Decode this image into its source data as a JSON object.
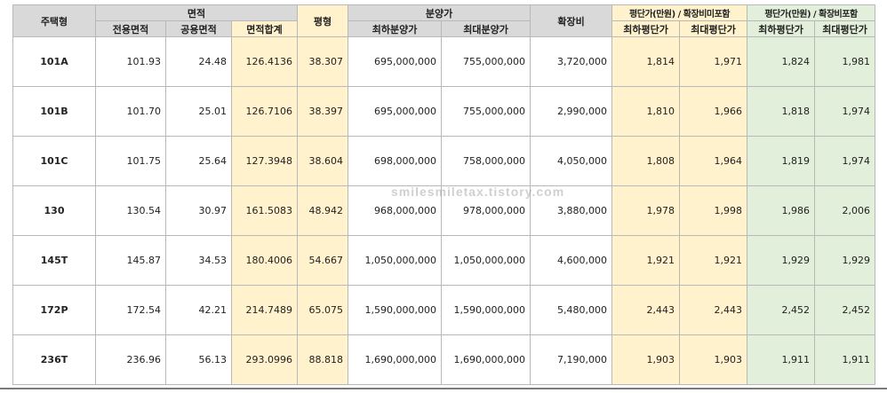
{
  "headers": {
    "type": "주택형",
    "area_group": "면적",
    "exclusive_area": "전용면적",
    "common_area": "공용면적",
    "total_area": "면적합계",
    "pyeong": "평형",
    "sale_group": "분양가",
    "min_price": "최하분양가",
    "max_price": "최대분양가",
    "expansion": "확장비",
    "per_pyeong_excl": "평단가(만원) / 확장비미포함",
    "per_pyeong_incl": "평단가(만원) / 확장비포함",
    "min_per_pyeong": "최하평단가",
    "max_per_pyeong": "최대평단가"
  },
  "rows": [
    {
      "type": "101A",
      "exclusive": "101.93",
      "common": "24.48",
      "total": "126.4136",
      "pyeong": "38.307",
      "min_price": "695,000,000",
      "max_price": "755,000,000",
      "expansion": "3,720,000",
      "excl_min": "1,814",
      "excl_max": "1,971",
      "incl_min": "1,824",
      "incl_max": "1,981"
    },
    {
      "type": "101B",
      "exclusive": "101.70",
      "common": "25.01",
      "total": "126.7106",
      "pyeong": "38.397",
      "min_price": "695,000,000",
      "max_price": "755,000,000",
      "expansion": "2,990,000",
      "excl_min": "1,810",
      "excl_max": "1,966",
      "incl_min": "1,818",
      "incl_max": "1,974"
    },
    {
      "type": "101C",
      "exclusive": "101.75",
      "common": "25.64",
      "total": "127.3948",
      "pyeong": "38.604",
      "min_price": "698,000,000",
      "max_price": "758,000,000",
      "expansion": "4,050,000",
      "excl_min": "1,808",
      "excl_max": "1,964",
      "incl_min": "1,819",
      "incl_max": "1,974"
    },
    {
      "type": "130",
      "exclusive": "130.54",
      "common": "30.97",
      "total": "161.5083",
      "pyeong": "48.942",
      "min_price": "968,000,000",
      "max_price": "978,000,000",
      "expansion": "3,880,000",
      "excl_min": "1,978",
      "excl_max": "1,998",
      "incl_min": "1,986",
      "incl_max": "2,006"
    },
    {
      "type": "145T",
      "exclusive": "145.87",
      "common": "34.53",
      "total": "180.4006",
      "pyeong": "54.667",
      "min_price": "1,050,000,000",
      "max_price": "1,050,000,000",
      "expansion": "4,600,000",
      "excl_min": "1,921",
      "excl_max": "1,921",
      "incl_min": "1,929",
      "incl_max": "1,929"
    },
    {
      "type": "172P",
      "exclusive": "172.54",
      "common": "42.21",
      "total": "214.7489",
      "pyeong": "65.075",
      "min_price": "1,590,000,000",
      "max_price": "1,590,000,000",
      "expansion": "5,480,000",
      "excl_min": "2,443",
      "excl_max": "2,443",
      "incl_min": "2,452",
      "incl_max": "2,452"
    },
    {
      "type": "236T",
      "exclusive": "236.96",
      "common": "56.13",
      "total": "293.0996",
      "pyeong": "88.818",
      "min_price": "1,690,000,000",
      "max_price": "1,690,000,000",
      "expansion": "7,190,000",
      "excl_min": "1,903",
      "excl_max": "1,903",
      "incl_min": "1,911",
      "incl_max": "1,911"
    }
  ],
  "watermark": "smilesmiletax.tistory.com",
  "colors": {
    "header_gray": "#d9d9d9",
    "highlight_yellow": "#fff2cc",
    "highlight_green": "#e2efda"
  }
}
